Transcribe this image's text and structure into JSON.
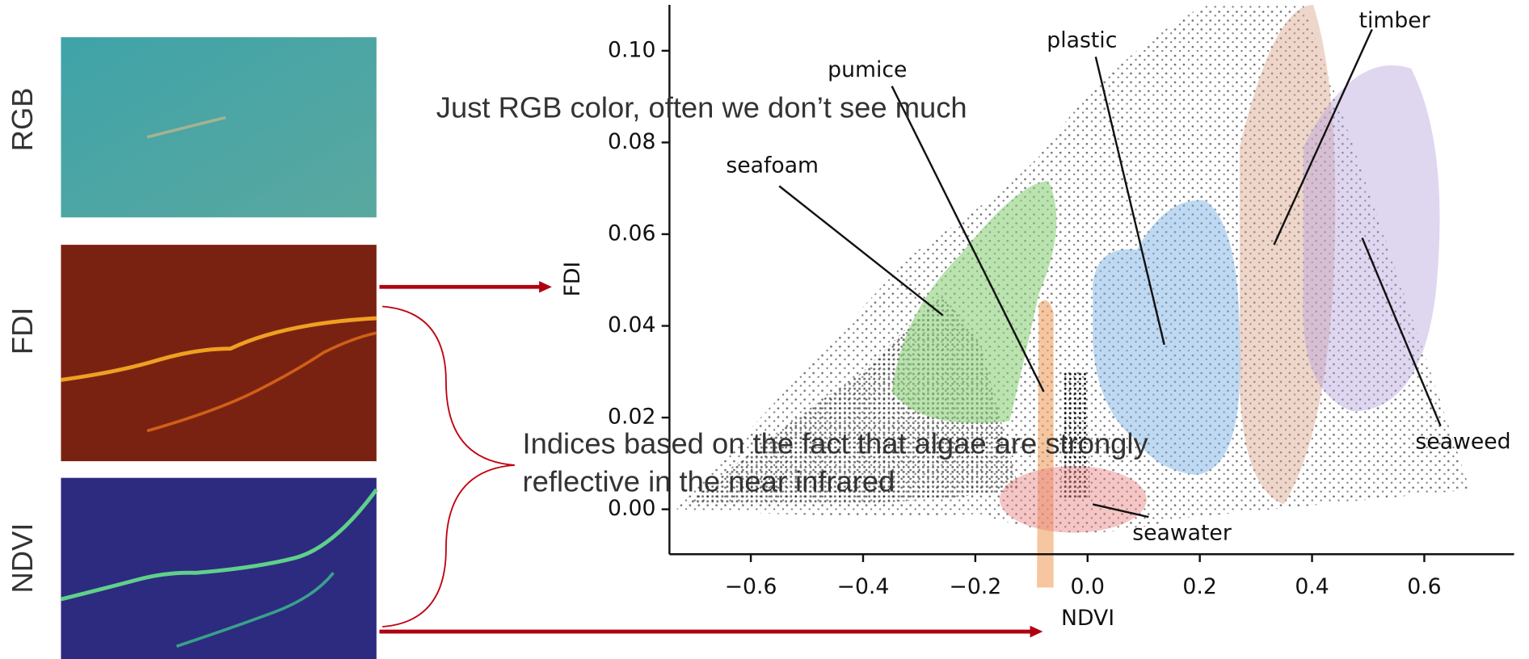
{
  "panels": [
    {
      "label": "RGB"
    },
    {
      "label": "FDI"
    },
    {
      "label": "NDVI"
    }
  ],
  "captions": [
    "Just RGB color, often we don’t see much",
    "Indices based on the fact that algae are strongly",
    "reflective in the near infrared"
  ],
  "chart_data": {
    "type": "scatter",
    "xlabel": "NDVI",
    "ylabel": "FDI",
    "xlim": [
      -0.745,
      0.76
    ],
    "ylim": [
      -0.0098,
      0.11
    ],
    "xticks": [
      {
        "value": -0.6,
        "label": "−0.6"
      },
      {
        "value": -0.4,
        "label": "−0.4"
      },
      {
        "value": -0.2,
        "label": "−0.2"
      },
      {
        "value": 0,
        "label": "0.0"
      },
      {
        "value": 0.2,
        "label": "0.2"
      },
      {
        "value": 0.4,
        "label": "0.4"
      },
      {
        "value": 0.6,
        "label": "0.6"
      }
    ],
    "yticks": [
      {
        "value": 0,
        "label": "0.00"
      },
      {
        "value": 0.02,
        "label": "0.02"
      },
      {
        "value": 0.04,
        "label": "0.04"
      },
      {
        "value": 0.06,
        "label": "0.06"
      },
      {
        "value": 0.08,
        "label": "0.08"
      },
      {
        "value": 0.1,
        "label": "0.10"
      }
    ],
    "annotations": [
      "timber",
      "plastic",
      "pumice",
      "seafoam",
      "seaweed",
      "seawater"
    ]
  }
}
